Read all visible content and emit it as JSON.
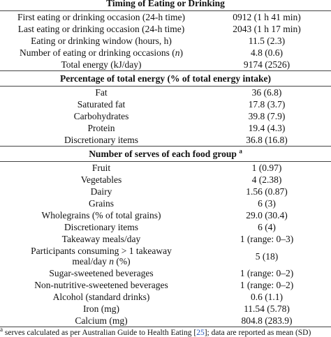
{
  "sections": [
    {
      "title": "Timing of Eating or Drinking",
      "rows": [
        {
          "label": "First eating or drinking occasion (24-h time)",
          "value": "0912 (1 h 41 min)"
        },
        {
          "label": "Last eating or drinking occasion (24-h time)",
          "value": "2043 (1 h 17 min)"
        },
        {
          "label": "Eating or drinking window (hours, h)",
          "value": "11.5 (2.3)"
        },
        {
          "label_parts": [
            {
              "text": "Number of eating or drinking occasions ("
            },
            {
              "text": "n",
              "italic": true
            },
            {
              "text": ")"
            }
          ],
          "value": "4.8 (0.6)"
        },
        {
          "label": "Total energy (kJ/day)",
          "value": "9174 (2526)"
        }
      ]
    },
    {
      "title": "Percentage of total energy (% of total energy intake)",
      "rows": [
        {
          "label": "Fat",
          "value": "36 (6.8)"
        },
        {
          "label": "Saturated fat",
          "value": "17.8 (3.7)"
        },
        {
          "label": "Carbohydrates",
          "value": "39.8 (7.9)"
        },
        {
          "label": "Protein",
          "value": "19.4 (4.3)"
        },
        {
          "label": "Discretionary items",
          "value": "36.8 (16.8)"
        }
      ]
    },
    {
      "title": "Number of serves of each food group",
      "title_sup": "a",
      "rows": [
        {
          "label": "Fruit",
          "value": "1 (0.97)"
        },
        {
          "label": "Vegetables",
          "value": "4 (2.38)"
        },
        {
          "label": "Dairy",
          "value": "1.56 (0.87)"
        },
        {
          "label": "Grains",
          "value": "6 (3)"
        },
        {
          "label": "Wholegrains (% of total grains)",
          "value": "29.0 (30.4)"
        },
        {
          "label": "Discretionary items",
          "value": "6 (4)"
        },
        {
          "label": "Takeaway meals/day",
          "value": "1 (range: 0–3)"
        },
        {
          "label_parts": [
            {
              "text": "Participants consuming > 1 takeaway meal/day "
            },
            {
              "text": "n",
              "italic": true
            },
            {
              "text": " (%)"
            }
          ],
          "value": "5 (18)"
        },
        {
          "label": "Sugar-sweetened beverages",
          "value": "1 (range: 0–2)"
        },
        {
          "label": "Non-nutritive-sweetened beverages",
          "value": "1 (range: 0–2)"
        },
        {
          "label": "Alcohol (standard drinks)",
          "value": "0.6 (1.1)"
        },
        {
          "label": "Iron (mg)",
          "value": "11.54 (5.78)"
        },
        {
          "label": "Calcium (mg)",
          "value": "804.8 (283.9)"
        }
      ]
    }
  ],
  "footnote": {
    "marker": "a",
    "text_before": "serves calculated as per Australian Guide to Health Eating [",
    "ref": "25",
    "text_after": "]; data are reported as mean (SD)"
  }
}
